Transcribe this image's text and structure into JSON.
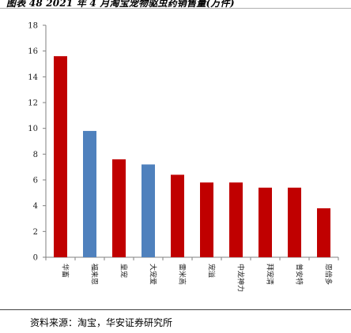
{
  "title": "图表 48 2021 年 4 月淘宝宠物驱虫药销售量(万件)",
  "source": "资料来源：淘宝，华安证券研究所",
  "colors": {
    "red": "#C00000",
    "blue": "#4F81BD",
    "axis": "#808080"
  },
  "chart_data": {
    "type": "bar",
    "title": "图表 48 2021 年 4 月淘宝宠物驱虫药销售量(万件)",
    "categories": [
      "华畜",
      "福来恩",
      "皇宠",
      "大宠爱",
      "雷米高",
      "宠溢",
      "中龙神力",
      "拜宠清",
      "普安特",
      "恩倍多"
    ],
    "values": [
      15.6,
      9.8,
      7.6,
      7.2,
      6.4,
      5.8,
      5.8,
      5.4,
      5.4,
      3.8
    ],
    "bar_colors": [
      "#C00000",
      "#4F81BD",
      "#C00000",
      "#4F81BD",
      "#C00000",
      "#C00000",
      "#C00000",
      "#C00000",
      "#C00000",
      "#C00000"
    ],
    "xlabel": "",
    "ylabel": "",
    "ylim": [
      0,
      18
    ],
    "yticks": [
      0,
      2,
      4,
      6,
      8,
      10,
      12,
      14,
      16,
      18
    ],
    "grid": false,
    "legend": "none"
  }
}
